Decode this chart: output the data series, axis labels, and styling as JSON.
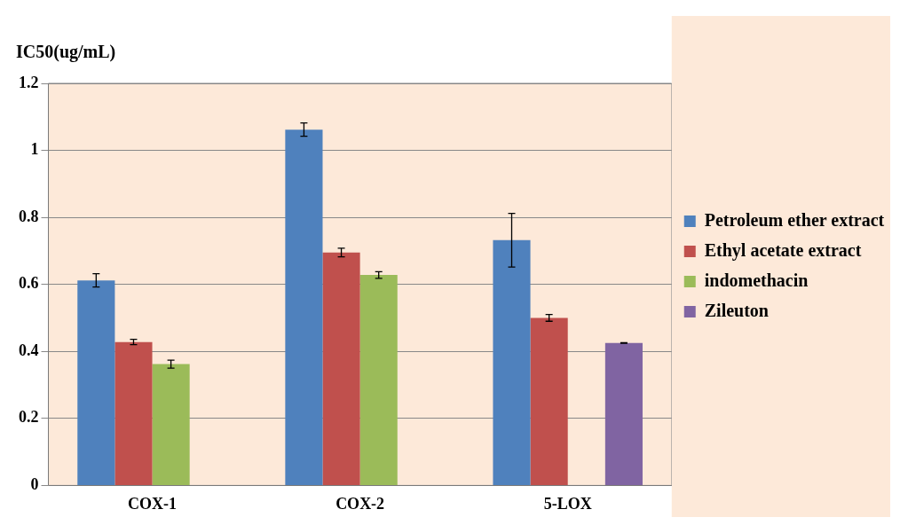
{
  "chart_data": {
    "type": "bar",
    "title": "IC50(ug/mL)",
    "categories": [
      "COX-1",
      "COX-2",
      "5-LOX"
    ],
    "series": [
      {
        "name": "Petroleum ether extract",
        "color": "#4f81bd",
        "values": [
          0.612,
          1.062,
          0.732
        ],
        "errors": [
          0.02,
          0.02,
          0.08
        ]
      },
      {
        "name": "Ethyl acetate extract",
        "color": "#c0504d",
        "values": [
          0.428,
          0.695,
          0.5
        ],
        "errors": [
          0.008,
          0.013,
          0.01
        ]
      },
      {
        "name": "indomethacin",
        "color": "#9bbb59",
        "values": [
          0.362,
          0.628,
          null
        ],
        "errors": [
          0.012,
          0.01,
          null
        ]
      },
      {
        "name": "Zileuton",
        "color": "#8064a2",
        "values": [
          null,
          null,
          0.425
        ],
        "errors": [
          null,
          null,
          0.001
        ]
      }
    ],
    "ylim": [
      0,
      1.2
    ],
    "yticks": [
      0,
      0.2,
      0.4,
      0.6,
      0.8,
      1,
      1.2
    ],
    "grid": "y",
    "legend": "right"
  }
}
